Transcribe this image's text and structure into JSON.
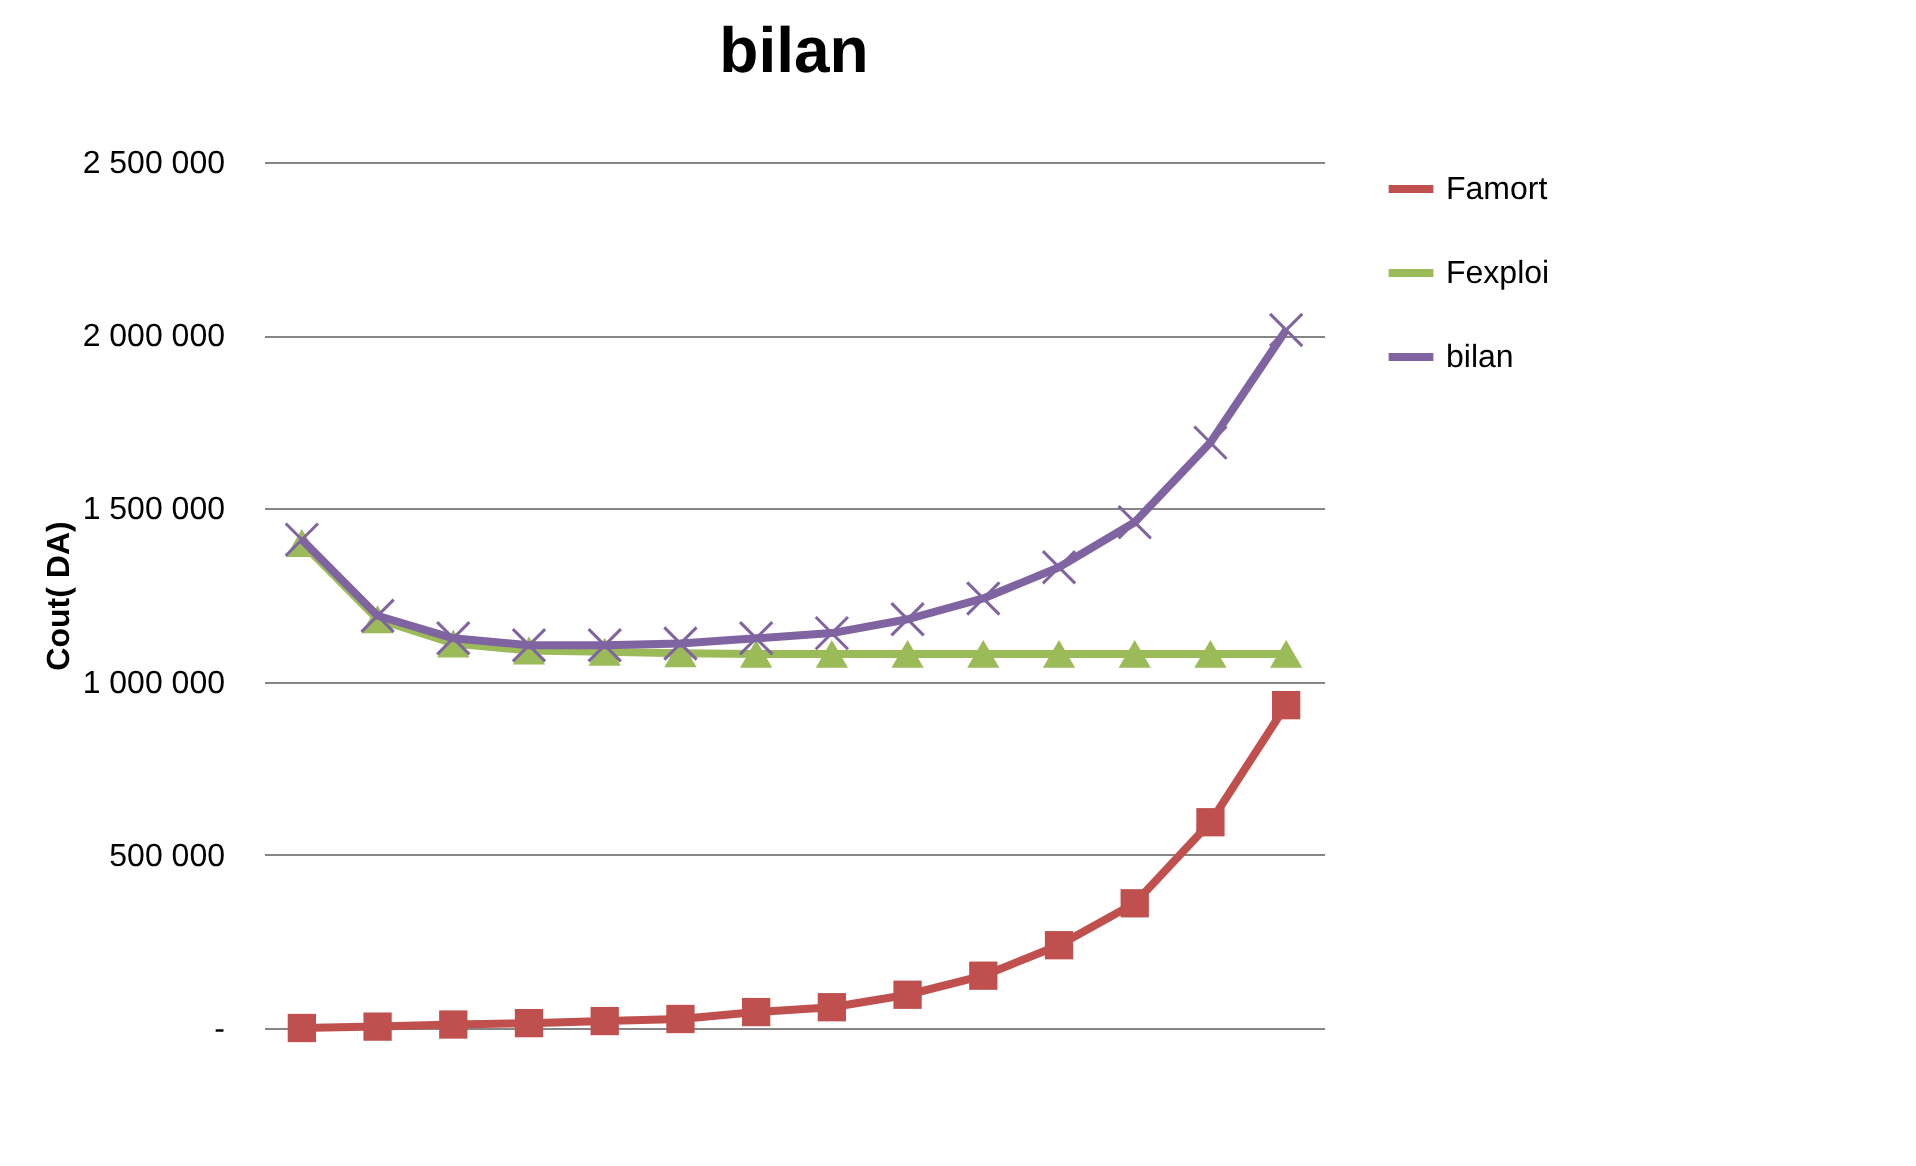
{
  "chart_data": {
    "type": "line",
    "title": "bilan",
    "ylabel": "Cout( DA)",
    "categories": [
      null,
      null,
      null,
      null,
      null,
      null,
      null,
      null,
      null,
      null,
      null,
      null,
      null,
      null
    ],
    "series": [
      {
        "name": "Famort",
        "color": "#c0504d",
        "marker": "square",
        "values": [
          0,
          4000,
          10000,
          14000,
          20000,
          26000,
          46000,
          60000,
          96000,
          151000,
          239000,
          360000,
          594000,
          932000
        ]
      },
      {
        "name": "Fexploi",
        "color": "#9bbb59",
        "marker": "triangle",
        "values": [
          1400000,
          1180000,
          1110000,
          1090000,
          1086000,
          1082000,
          1080000,
          1080000,
          1080000,
          1080000,
          1080000,
          1080000,
          1080000,
          1080000
        ]
      },
      {
        "name": "bilan",
        "color": "#8064a2",
        "marker": "cross",
        "values": [
          1410000,
          1190000,
          1125000,
          1105000,
          1105000,
          1110000,
          1125000,
          1140000,
          1180000,
          1240000,
          1330000,
          1460000,
          1690000,
          2015000
        ]
      }
    ],
    "ylim": [
      0,
      2500000
    ],
    "yticks": [
      {
        "value": 0,
        "label": "-"
      },
      {
        "value": 500000,
        "label": "500 000"
      },
      {
        "value": 1000000,
        "label": "1 000 000"
      },
      {
        "value": 1500000,
        "label": "1 500 000"
      },
      {
        "value": 2000000,
        "label": "2 000 000"
      },
      {
        "value": 2500000,
        "label": "2 500 000"
      }
    ],
    "grid": "y",
    "legend": "right"
  }
}
